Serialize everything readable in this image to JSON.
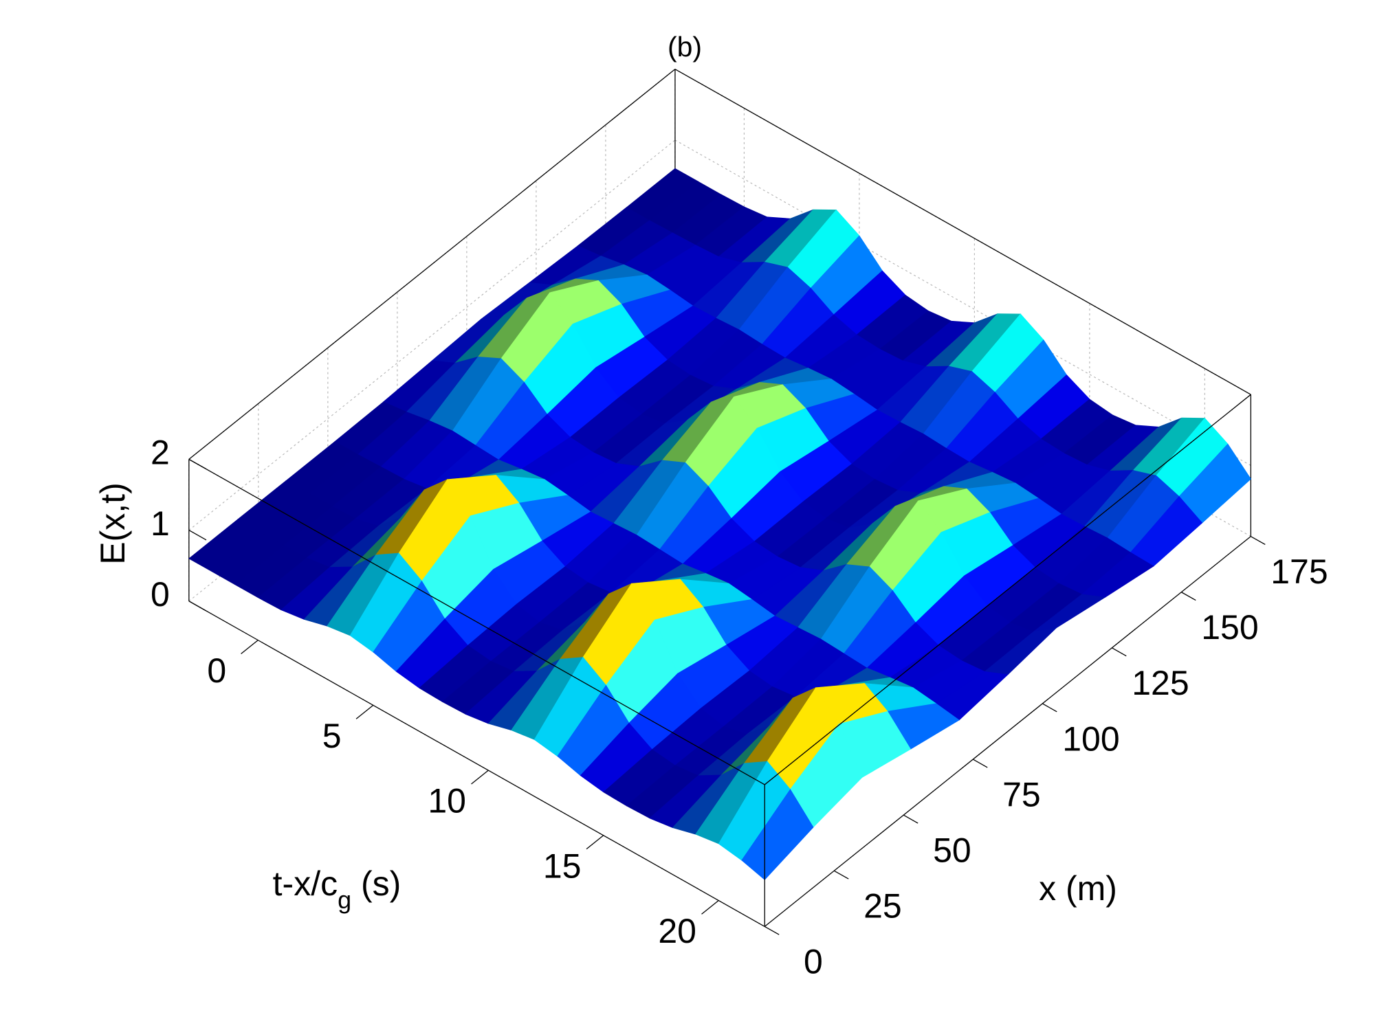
{
  "chart_data": {
    "type": "surface",
    "title": "(b)",
    "t_label": [
      "t-x/c",
      "g",
      " (s)"
    ],
    "x_label": "x (m)",
    "z_label": "E(x,t)",
    "colormap": "jet",
    "clim": [
      0.55,
      2
    ],
    "tlim": [
      -3,
      22
    ],
    "tticks": [
      0,
      5,
      10,
      15,
      20
    ],
    "xlim": [
      0,
      175
    ],
    "xticks": [
      0,
      25,
      50,
      75,
      100,
      125,
      150,
      175
    ],
    "zlim": [
      0,
      2
    ],
    "zticks": [
      0,
      1,
      2
    ],
    "grid": true,
    "t": [
      -3,
      -2,
      -1,
      0,
      1,
      2,
      3,
      4,
      5,
      6,
      7,
      8,
      9,
      10,
      11,
      12,
      13,
      14,
      15,
      16,
      17,
      18,
      19,
      20,
      21,
      22
    ],
    "x": [
      0,
      17.5,
      35,
      52.5,
      70,
      87.5,
      105,
      122.5,
      140,
      157.5,
      175
    ],
    "z": [
      [
        0.6,
        0.6,
        0.6,
        0.6,
        0.61,
        0.64,
        0.67,
        0.64,
        0.61,
        0.6,
        0.6
      ],
      [
        0.6,
        0.6,
        0.6,
        0.6,
        0.65,
        0.79,
        0.91,
        0.79,
        0.65,
        0.6,
        0.6
      ],
      [
        0.6,
        0.6,
        0.6,
        0.61,
        0.71,
        1.06,
        1.34,
        1.06,
        0.71,
        0.61,
        0.6
      ],
      [
        0.6,
        0.61,
        0.61,
        0.62,
        0.75,
        1.22,
        1.6,
        1.22,
        0.75,
        0.62,
        0.61
      ],
      [
        0.61,
        0.66,
        0.69,
        0.67,
        0.73,
        1.07,
        1.34,
        1.07,
        0.72,
        0.64,
        0.65
      ],
      [
        0.66,
        0.85,
        1.0,
        0.85,
        0.71,
        0.8,
        0.91,
        0.79,
        0.68,
        0.74,
        0.81
      ],
      [
        0.75,
        1.2,
        1.57,
        1.2,
        0.76,
        0.66,
        0.67,
        0.65,
        0.69,
        0.93,
        1.12
      ],
      [
        0.8,
        1.41,
        1.9,
        1.41,
        0.8,
        0.63,
        0.62,
        0.62,
        0.71,
        1.04,
        1.3
      ],
      [
        0.75,
        1.2,
        1.57,
        1.2,
        0.76,
        0.66,
        0.67,
        0.65,
        0.69,
        0.93,
        1.12
      ],
      [
        0.66,
        0.85,
        1.0,
        0.85,
        0.71,
        0.8,
        0.91,
        0.79,
        0.68,
        0.74,
        0.81
      ],
      [
        0.61,
        0.66,
        0.69,
        0.67,
        0.73,
        1.07,
        1.34,
        1.07,
        0.72,
        0.64,
        0.65
      ],
      [
        0.6,
        0.62,
        0.62,
        0.63,
        0.75,
        1.22,
        1.6,
        1.22,
        0.75,
        0.62,
        0.61
      ],
      [
        0.61,
        0.66,
        0.69,
        0.67,
        0.73,
        1.07,
        1.34,
        1.07,
        0.72,
        0.64,
        0.65
      ],
      [
        0.66,
        0.85,
        1.0,
        0.85,
        0.71,
        0.8,
        0.91,
        0.79,
        0.68,
        0.74,
        0.81
      ],
      [
        0.75,
        1.2,
        1.57,
        1.2,
        0.76,
        0.66,
        0.67,
        0.65,
        0.69,
        0.93,
        1.12
      ],
      [
        0.8,
        1.41,
        1.9,
        1.41,
        0.8,
        0.63,
        0.62,
        0.62,
        0.71,
        1.04,
        1.3
      ],
      [
        0.75,
        1.2,
        1.57,
        1.2,
        0.76,
        0.66,
        0.67,
        0.65,
        0.69,
        0.93,
        1.12
      ],
      [
        0.66,
        0.85,
        1.0,
        0.85,
        0.71,
        0.8,
        0.91,
        0.79,
        0.68,
        0.74,
        0.81
      ],
      [
        0.61,
        0.66,
        0.69,
        0.67,
        0.73,
        1.07,
        1.34,
        1.07,
        0.72,
        0.64,
        0.65
      ],
      [
        0.6,
        0.62,
        0.62,
        0.63,
        0.75,
        1.22,
        1.6,
        1.22,
        0.75,
        0.62,
        0.61
      ],
      [
        0.61,
        0.66,
        0.69,
        0.67,
        0.73,
        1.07,
        1.34,
        1.07,
        0.72,
        0.64,
        0.65
      ],
      [
        0.66,
        0.85,
        1.0,
        0.85,
        0.71,
        0.8,
        0.91,
        0.79,
        0.68,
        0.74,
        0.81
      ],
      [
        0.75,
        1.2,
        1.57,
        1.2,
        0.76,
        0.66,
        0.67,
        0.65,
        0.69,
        0.93,
        1.12
      ],
      [
        0.8,
        1.41,
        1.9,
        1.41,
        0.8,
        0.63,
        0.62,
        0.62,
        0.71,
        1.04,
        1.3
      ],
      [
        0.75,
        1.2,
        1.57,
        1.2,
        0.76,
        0.66,
        0.67,
        0.65,
        0.69,
        0.93,
        1.12
      ],
      [
        0.66,
        0.85,
        1.0,
        0.85,
        0.71,
        0.8,
        0.91,
        0.79,
        0.68,
        0.74,
        0.81
      ]
    ]
  }
}
